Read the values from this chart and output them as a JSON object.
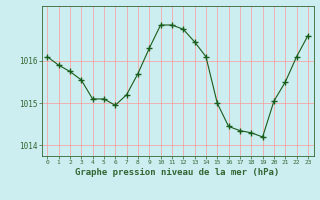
{
  "x": [
    0,
    1,
    2,
    3,
    4,
    5,
    6,
    7,
    8,
    9,
    10,
    11,
    12,
    13,
    14,
    15,
    16,
    17,
    18,
    19,
    20,
    21,
    22,
    23
  ],
  "y": [
    1016.1,
    1015.9,
    1015.75,
    1015.55,
    1015.1,
    1015.1,
    1014.95,
    1015.2,
    1015.7,
    1016.3,
    1016.85,
    1016.85,
    1016.75,
    1016.45,
    1016.1,
    1015.0,
    1014.45,
    1014.35,
    1014.3,
    1014.2,
    1015.05,
    1015.5,
    1016.1,
    1016.6
  ],
  "line_color": "#1a5c1a",
  "marker": "+",
  "marker_size": 4,
  "marker_lw": 1.0,
  "line_width": 0.8,
  "bg_color": "#cceef0",
  "grid_color": "#ff9999",
  "axis_color": "#336633",
  "tick_color": "#336633",
  "xlabel": "Graphe pression niveau de la mer (hPa)",
  "xlabel_fontsize": 6.5,
  "yticks": [
    1014,
    1015,
    1016
  ],
  "ylim": [
    1013.75,
    1017.3
  ],
  "xlim": [
    -0.5,
    23.5
  ],
  "xtick_fontsize": 4.5,
  "ytick_fontsize": 5.5
}
